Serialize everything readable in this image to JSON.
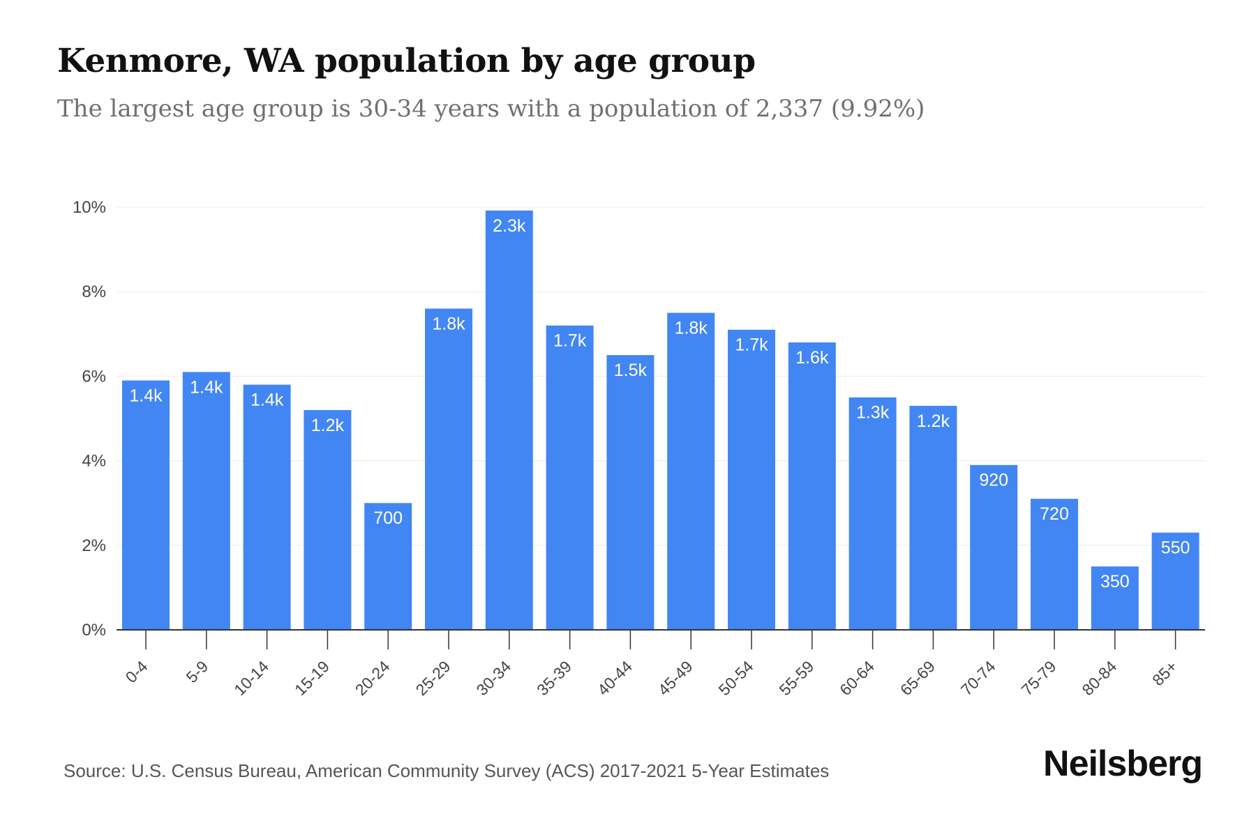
{
  "title": "Kenmore, WA population by age group",
  "subtitle": "The largest age group is 30-34 years with a population of 2,337 (9.92%)",
  "source": "Source: U.S. Census Bureau, American Community Survey (ACS) 2017-2021 5-Year Estimates",
  "brand": "Neilsberg",
  "colors": {
    "bar": "#4286f4",
    "bar_label": "#ffffff",
    "grid": "#ececec",
    "axis": "#333333",
    "tick_text": "#444444"
  },
  "chart_data": {
    "type": "bar",
    "categories": [
      "0-4",
      "5-9",
      "10-14",
      "15-19",
      "20-24",
      "25-29",
      "30-34",
      "35-39",
      "40-44",
      "45-49",
      "50-54",
      "55-59",
      "60-64",
      "65-69",
      "70-74",
      "75-79",
      "80-84",
      "85+"
    ],
    "values": [
      5.9,
      6.1,
      5.8,
      5.2,
      3.0,
      7.6,
      9.92,
      7.2,
      6.5,
      7.5,
      7.1,
      6.8,
      5.5,
      5.3,
      3.9,
      3.1,
      1.5,
      2.3
    ],
    "data_labels": [
      "1.4k",
      "1.4k",
      "1.4k",
      "1.2k",
      "700",
      "1.8k",
      "2.3k",
      "1.7k",
      "1.5k",
      "1.8k",
      "1.7k",
      "1.6k",
      "1.3k",
      "1.2k",
      "920",
      "720",
      "350",
      "550"
    ],
    "yticks": [
      0,
      2,
      4,
      6,
      8,
      10
    ],
    "ytick_labels": [
      "0%",
      "2%",
      "4%",
      "6%",
      "8%",
      "10%"
    ],
    "ylim": [
      0,
      10
    ],
    "xlabel": "",
    "ylabel": "",
    "grid": true,
    "legend": false
  }
}
